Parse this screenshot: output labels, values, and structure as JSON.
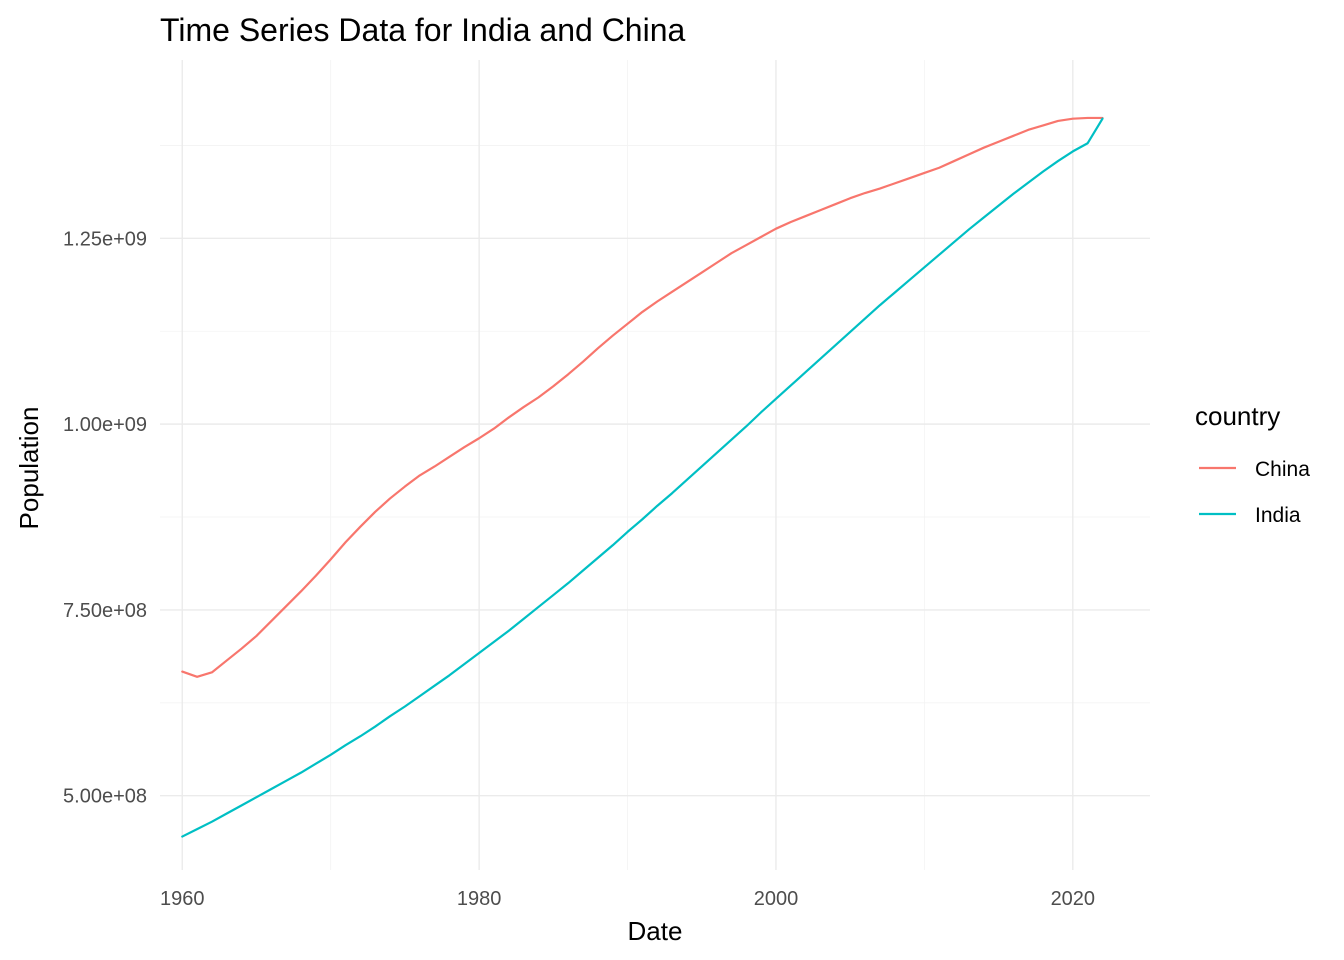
{
  "chart_data": {
    "type": "line",
    "title": "Time Series Data for India and China",
    "xlabel": "Date",
    "ylabel": "Population",
    "xlim": [
      1958.5,
      2025.2
    ],
    "ylim": [
      400000000,
      1490000000
    ],
    "x_ticks": [
      1960,
      1980,
      2000,
      2020
    ],
    "x_tick_labels": [
      "1960",
      "1980",
      "2000",
      "2020"
    ],
    "y_ticks": [
      500000000,
      750000000,
      1000000000,
      1250000000
    ],
    "y_tick_labels": [
      "5.00e+08",
      "7.50e+08",
      "1.00e+09",
      "1.25e+09"
    ],
    "grid": true,
    "legend": {
      "title": "country",
      "position": "right"
    },
    "x": [
      1960,
      1961,
      1962,
      1963,
      1964,
      1965,
      1966,
      1967,
      1968,
      1969,
      1970,
      1971,
      1972,
      1973,
      1974,
      1975,
      1976,
      1977,
      1978,
      1979,
      1980,
      1981,
      1982,
      1983,
      1984,
      1985,
      1986,
      1987,
      1988,
      1989,
      1990,
      1991,
      1992,
      1993,
      1994,
      1995,
      1996,
      1997,
      1998,
      1999,
      2000,
      2001,
      2002,
      2003,
      2004,
      2005,
      2006,
      2007,
      2008,
      2009,
      2010,
      2011,
      2012,
      2013,
      2014,
      2015,
      2016,
      2017,
      2018,
      2019,
      2020,
      2021,
      2022
    ],
    "series": [
      {
        "name": "China",
        "color": "#F8766D",
        "values": [
          667000000,
          660000000,
          666000000,
          682000000,
          698000000,
          715000000,
          735000000,
          755000000,
          775000000,
          796000000,
          818000000,
          841000000,
          862000000,
          882000000,
          900000000,
          916000000,
          931000000,
          943000000,
          956000000,
          969000000,
          981000000,
          994000000,
          1009000000,
          1023000000,
          1036000000,
          1051000000,
          1067000000,
          1084000000,
          1102000000,
          1119000000,
          1135000000,
          1151000000,
          1165000000,
          1178000000,
          1191000000,
          1204000000,
          1217000000,
          1230000000,
          1241000000,
          1252000000,
          1263000000,
          1272000000,
          1280000000,
          1288000000,
          1296000000,
          1304000000,
          1311000000,
          1317000000,
          1324000000,
          1331000000,
          1338000000,
          1345000000,
          1354000000,
          1363000000,
          1372000000,
          1380000000,
          1388000000,
          1396000000,
          1402000000,
          1408000000,
          1411000000,
          1412000000,
          1412000000
        ]
      },
      {
        "name": "India",
        "color": "#00BFC4",
        "values": [
          445000000,
          455000000,
          465000000,
          476000000,
          487000000,
          498000000,
          509000000,
          520000000,
          531000000,
          543000000,
          555000000,
          568000000,
          580000000,
          593000000,
          607000000,
          620000000,
          634000000,
          648000000,
          662000000,
          677000000,
          692000000,
          707000000,
          722000000,
          738000000,
          754000000,
          770000000,
          786000000,
          803000000,
          820000000,
          837000000,
          855000000,
          872000000,
          890000000,
          907000000,
          925000000,
          943000000,
          961000000,
          979000000,
          997000000,
          1016000000,
          1034000000,
          1052000000,
          1070000000,
          1088000000,
          1106000000,
          1124000000,
          1142000000,
          1160000000,
          1177000000,
          1194000000,
          1211000000,
          1228000000,
          1245000000,
          1262000000,
          1278000000,
          1294000000,
          1310000000,
          1325000000,
          1340000000,
          1354000000,
          1367000000,
          1378000000,
          1411000000
        ]
      }
    ]
  }
}
